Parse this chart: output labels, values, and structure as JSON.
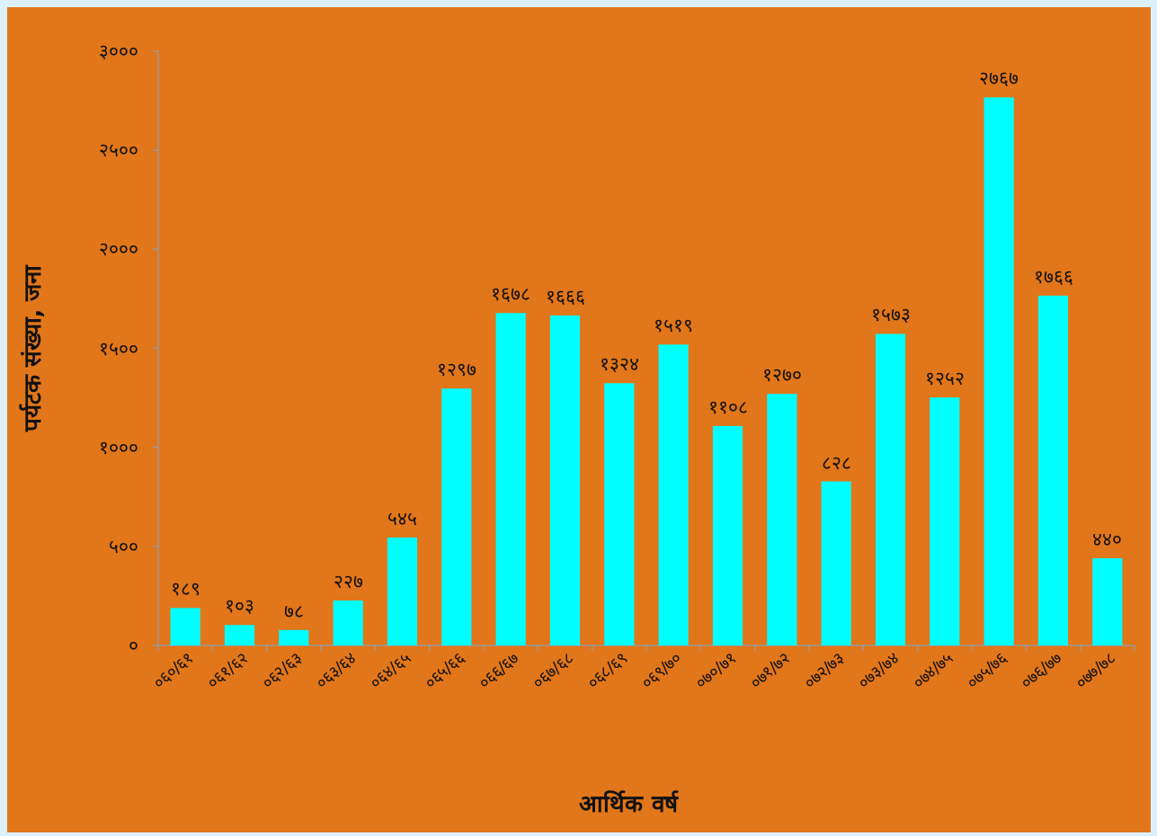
{
  "chart_data": {
    "type": "bar",
    "xlabel": "आर्थिक वर्ष",
    "ylabel": "पर्यटक संख्या, जना",
    "categories": [
      "०६०/६१",
      "०६१/६२",
      "०६२/६३",
      "०६३/६४",
      "०६४/६५",
      "०६५/६६",
      "०६६/६७",
      "०६७/६८",
      "०६८/६९",
      "०६९/७०",
      "०७०/७१",
      "०७१/७२",
      "०७२/७३",
      "०७३/७४",
      "०७४/७५",
      "०७५/७६",
      "०७६/७७",
      "०७७/७८"
    ],
    "values": [
      189,
      103,
      78,
      227,
      545,
      1297,
      1678,
      1666,
      1324,
      1519,
      1108,
      1270,
      828,
      1573,
      1252,
      2767,
      1766,
      440
    ],
    "value_labels": [
      "१८९",
      "१०३",
      "७८",
      "२२७",
      "५४५",
      "१२९७",
      "१६७८",
      "१६६६",
      "१३२४",
      "१५१९",
      "११०८",
      "१२७०",
      "८२८",
      "१५७३",
      "१२५२",
      "२७६७",
      "१७६६",
      "४४०"
    ],
    "color": "#00ffff",
    "ylim": [
      0,
      3000
    ],
    "yticks": [
      {
        "value": 0,
        "label": "०"
      },
      {
        "value": 500,
        "label": "५००"
      },
      {
        "value": 1000,
        "label": "१०००"
      },
      {
        "value": 1500,
        "label": "१५००"
      },
      {
        "value": 2000,
        "label": "२०००"
      },
      {
        "value": 2500,
        "label": "२५००"
      },
      {
        "value": 3000,
        "label": "३०००"
      }
    ],
    "grid": false
  }
}
